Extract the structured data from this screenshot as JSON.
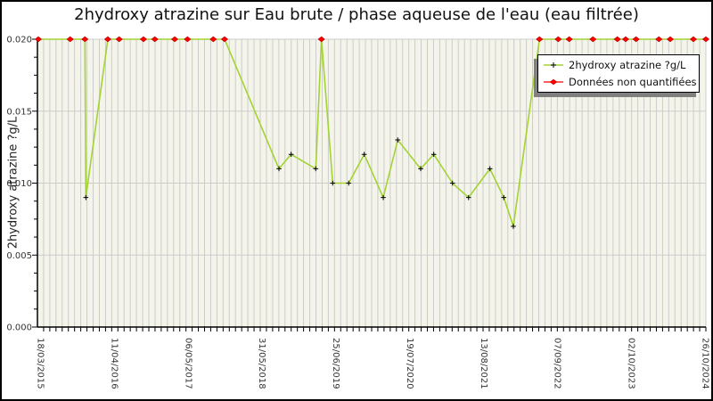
{
  "figure": {
    "title": "2hydroxy atrazine sur Eau brute / phase aqueuse de l'eau (eau filtrée)"
  },
  "legend": {
    "items": [
      {
        "label": "2hydroxy atrazine ?g/L",
        "marker": "plus",
        "marker_color": "#000000",
        "line_color": "#a3d332"
      },
      {
        "label": "Données non quantifiées",
        "marker": "diamond",
        "marker_color": "#ff0000",
        "line_color": "#ff0000"
      }
    ]
  },
  "colors": {
    "plot_bg": "#f4f4ea",
    "grid": "#cccccc",
    "line": "#a3d332",
    "quantified_marker": "#000000",
    "non_quantified_marker": "#ff0000",
    "non_quantified_edge": "#b00000",
    "axis": "#000000",
    "tick_label": "#333333",
    "legend_shadow": "#808080"
  },
  "chart_data": {
    "type": "line",
    "title": "2hydroxy atrazine sur Eau brute / phase aqueuse de l'eau (eau filtrée)",
    "xlabel": "",
    "ylabel": "2hydroxy atrazine ?g/L",
    "ylim": [
      0.0,
      0.02
    ],
    "yticks": [
      0.0,
      0.005,
      0.01,
      0.015,
      0.02
    ],
    "ytick_labels": [
      "0.000",
      "0.005",
      "0.010",
      "0.015",
      "0.020"
    ],
    "y_minor_step": 0.00125,
    "xtick_labels": [
      "18/03/2015",
      "11/04/2016",
      "06/05/2017",
      "31/05/2018",
      "25/06/2019",
      "19/07/2020",
      "13/08/2021",
      "07/09/2022",
      "02/10/2023",
      "26/10/2024"
    ],
    "x_minor_gridlines": "monthly",
    "grid": "on",
    "legend_position": "upper right",
    "series": [
      {
        "name": "2hydroxy atrazine ?g/L",
        "style": "line+marker",
        "marker": "plus"
      },
      {
        "name": "Données non quantifiées",
        "style": "marker",
        "marker": "diamond",
        "note": "points plotted at 0.020 cap"
      }
    ],
    "points": [
      {
        "x": 0.0,
        "date_est": "2015-03-18",
        "value": 0.02,
        "quantified": false
      },
      {
        "x": 0.0477,
        "date_est": "2015-08-19",
        "value": 0.02,
        "quantified": false
      },
      {
        "x": 0.0698,
        "date_est": "2015-11-05",
        "value": 0.02,
        "quantified": false
      },
      {
        "x": 0.0712,
        "date_est": "2015-11-09",
        "value": 0.009,
        "quantified": true
      },
      {
        "x": 0.1041,
        "date_est": "2016-03-04",
        "value": 0.02,
        "quantified": false
      },
      {
        "x": 0.1211,
        "date_est": "2016-05-03",
        "value": 0.02,
        "quantified": false
      },
      {
        "x": 0.1575,
        "date_est": "2016-09-08",
        "value": 0.02,
        "quantified": false
      },
      {
        "x": 0.1745,
        "date_est": "2016-11-07",
        "value": 0.02,
        "quantified": false
      },
      {
        "x": 0.2043,
        "date_est": "2017-02-20",
        "value": 0.02,
        "quantified": false
      },
      {
        "x": 0.2234,
        "date_est": "2017-04-28",
        "value": 0.02,
        "quantified": false
      },
      {
        "x": 0.2621,
        "date_est": "2017-09-11",
        "value": 0.02,
        "quantified": false
      },
      {
        "x": 0.279,
        "date_est": "2017-11-10",
        "value": 0.02,
        "quantified": false
      },
      {
        "x": 0.3605,
        "date_est": "2018-08-24",
        "value": 0.011,
        "quantified": true
      },
      {
        "x": 0.3787,
        "date_est": "2018-10-27",
        "value": 0.012,
        "quantified": true
      },
      {
        "x": 0.4156,
        "date_est": "2019-03-06",
        "value": 0.011,
        "quantified": true
      },
      {
        "x": 0.4241,
        "date_est": "2019-04-05",
        "value": 0.02,
        "quantified": false
      },
      {
        "x": 0.441,
        "date_est": "2019-06-03",
        "value": 0.01,
        "quantified": true
      },
      {
        "x": 0.465,
        "date_est": "2019-08-27",
        "value": 0.01,
        "quantified": true
      },
      {
        "x": 0.4882,
        "date_est": "2019-11-16",
        "value": 0.012,
        "quantified": true
      },
      {
        "x": 0.5167,
        "date_est": "2020-02-25",
        "value": 0.009,
        "quantified": true
      },
      {
        "x": 0.5384,
        "date_est": "2020-05-11",
        "value": 0.013,
        "quantified": true
      },
      {
        "x": 0.5728,
        "date_est": "2020-09-09",
        "value": 0.011,
        "quantified": true
      },
      {
        "x": 0.5924,
        "date_est": "2020-11-17",
        "value": 0.012,
        "quantified": true
      },
      {
        "x": 0.6204,
        "date_est": "2021-02-24",
        "value": 0.01,
        "quantified": true
      },
      {
        "x": 0.6445,
        "date_est": "2021-05-19",
        "value": 0.009,
        "quantified": true
      },
      {
        "x": 0.6765,
        "date_est": "2021-09-09",
        "value": 0.011,
        "quantified": true
      },
      {
        "x": 0.6973,
        "date_est": "2021-11-21",
        "value": 0.009,
        "quantified": true
      },
      {
        "x": 0.7116,
        "date_est": "2022-01-11",
        "value": 0.007,
        "quantified": true
      },
      {
        "x": 0.7507,
        "date_est": "2022-05-28",
        "value": 0.02,
        "quantified": false
      },
      {
        "x": 0.7788,
        "date_est": "2022-09-04",
        "value": 0.02,
        "quantified": false
      },
      {
        "x": 0.7953,
        "date_est": "2022-11-01",
        "value": 0.02,
        "quantified": false
      },
      {
        "x": 0.8308,
        "date_est": "2023-03-06",
        "value": 0.02,
        "quantified": false
      },
      {
        "x": 0.8674,
        "date_est": "2023-07-13",
        "value": 0.02,
        "quantified": false
      },
      {
        "x": 0.8798,
        "date_est": "2023-08-26",
        "value": 0.02,
        "quantified": false
      },
      {
        "x": 0.8954,
        "date_est": "2023-10-20",
        "value": 0.02,
        "quantified": false
      },
      {
        "x": 0.9296,
        "date_est": "2024-02-17",
        "value": 0.02,
        "quantified": false
      },
      {
        "x": 0.9466,
        "date_est": "2024-04-17",
        "value": 0.02,
        "quantified": false
      },
      {
        "x": 0.9813,
        "date_est": "2024-08-17",
        "value": 0.02,
        "quantified": false
      },
      {
        "x": 1.0,
        "date_est": "2024-10-26",
        "value": 0.02,
        "quantified": false
      }
    ]
  }
}
